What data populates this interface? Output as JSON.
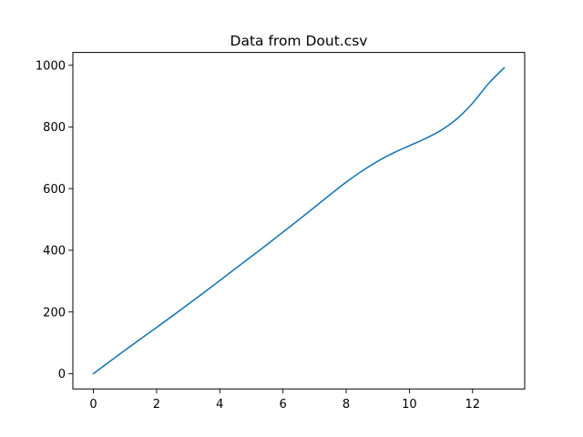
{
  "chart_data": {
    "type": "line",
    "title": "Data from Dout.csv",
    "xlabel": "",
    "ylabel": "",
    "xlim": [
      -0.65,
      13.65
    ],
    "ylim": [
      -49.6,
      1041.6
    ],
    "xticks": [
      0,
      2,
      4,
      6,
      8,
      10,
      12
    ],
    "yticks": [
      0,
      200,
      400,
      600,
      800,
      1000
    ],
    "grid": false,
    "legend": "none",
    "series": [
      {
        "color": "#1f77b4",
        "x": [
          0,
          0.5,
          1,
          1.5,
          2,
          2.5,
          3,
          3.5,
          4,
          4.5,
          5,
          5.5,
          6,
          6.5,
          7,
          7.5,
          8,
          8.5,
          9,
          9.5,
          10,
          10.5,
          11,
          11.5,
          12,
          12.5,
          13
        ],
        "y": [
          0,
          38,
          76,
          113,
          150,
          187,
          225,
          263,
          302,
          341,
          380,
          419,
          459,
          499,
          540,
          581,
          621,
          657,
          689,
          716,
          739,
          762,
          789,
          826,
          877,
          940,
          992
        ]
      }
    ]
  }
}
